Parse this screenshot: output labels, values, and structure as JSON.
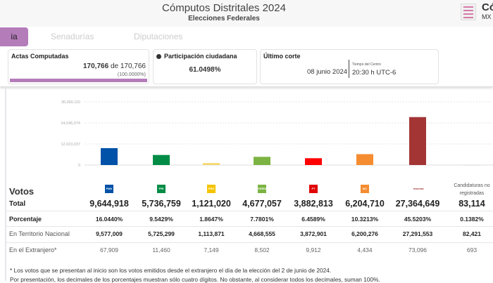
{
  "header": {
    "title": "Cómputos Distritales 2024",
    "subtitle": "Elecciones Federales",
    "brand_text": "Có",
    "brand_sub": "MX"
  },
  "tabs": [
    {
      "label": "ia",
      "active": true
    },
    {
      "label": "Senadurías",
      "active": false
    },
    {
      "label": "Diputaciones",
      "active": false
    }
  ],
  "cards": {
    "actas": {
      "title": "Actas Computadas",
      "count": "170,766",
      "de": "de",
      "total": "170,766",
      "percent": "(100.0000%)",
      "progress": 100
    },
    "participacion": {
      "title": "Participación ciudadana",
      "value": "61.0498%"
    },
    "corte": {
      "title": "Último corte",
      "date": "08 junio 2024",
      "tz_label": "Tiempo del Centro",
      "time": "20:30 h UTC-6"
    }
  },
  "chart_data": {
    "type": "bar",
    "categories": [
      "PAN",
      "PRI",
      "PRD",
      "PVEM",
      "PT",
      "MC",
      "morena",
      "Candidaturas no registradas"
    ],
    "values": [
      9644918,
      5736759,
      1121020,
      4677057,
      3882813,
      6204710,
      27364649,
      83114
    ],
    "colors": [
      "#0051a8",
      "#008c45",
      "#f5d76e",
      "#7cb342",
      "#ff0000",
      "#f58c30",
      "#a33535",
      "#dddddd"
    ],
    "yticks": [
      "0",
      "12,023,037",
      "24,046,074",
      "36,069,110"
    ],
    "ylim": [
      0,
      36069110
    ],
    "grid": true
  },
  "table": {
    "title": "Votos",
    "parties": [
      {
        "name": "PAN",
        "color": "#0051a8"
      },
      {
        "name": "PRI",
        "color": "#008c45"
      },
      {
        "name": "PRD",
        "color": "#f5c400"
      },
      {
        "name": "VERDE",
        "color": "#7cb342"
      },
      {
        "name": "PT",
        "color": "#e00000"
      },
      {
        "name": "MC",
        "color": "#f58c30"
      },
      {
        "name": "morena",
        "color": "#a33535"
      }
    ],
    "no_reg_label": "Candidaturas no registradas",
    "rows": [
      {
        "label": "Total",
        "values": [
          "9,644,918",
          "5,736,759",
          "1,121,020",
          "4,677,057",
          "3,882,813",
          "6,204,710",
          "27,364,649",
          "83,114"
        ]
      },
      {
        "label": "Porcentaje",
        "values": [
          "16.0440%",
          "9.5429%",
          "1.8647%",
          "7.7801%",
          "6.4589%",
          "10.3213%",
          "45.5203%",
          "0.1382%"
        ]
      },
      {
        "label": "En Territorio Nacional",
        "values": [
          "9,577,009",
          "5,725,299",
          "1,113,871",
          "4,668,555",
          "3,872,901",
          "6,200,276",
          "27,291,553",
          "82,421"
        ]
      },
      {
        "label": "En el Extranjero*",
        "values": [
          "67,909",
          "11,460",
          "7,149",
          "8,502",
          "9,912",
          "4,434",
          "73,096",
          "693"
        ]
      }
    ],
    "notes": [
      "* Los votos que se presentan al inicio son los votos emitidos desde el extranjero el día de la elección del 2 de junio de 2024.",
      "Por presentación, los decimales de los porcentajes muestran sólo cuatro dígitos. No obstante, al considerar todos los decimales, suman 100%."
    ]
  }
}
